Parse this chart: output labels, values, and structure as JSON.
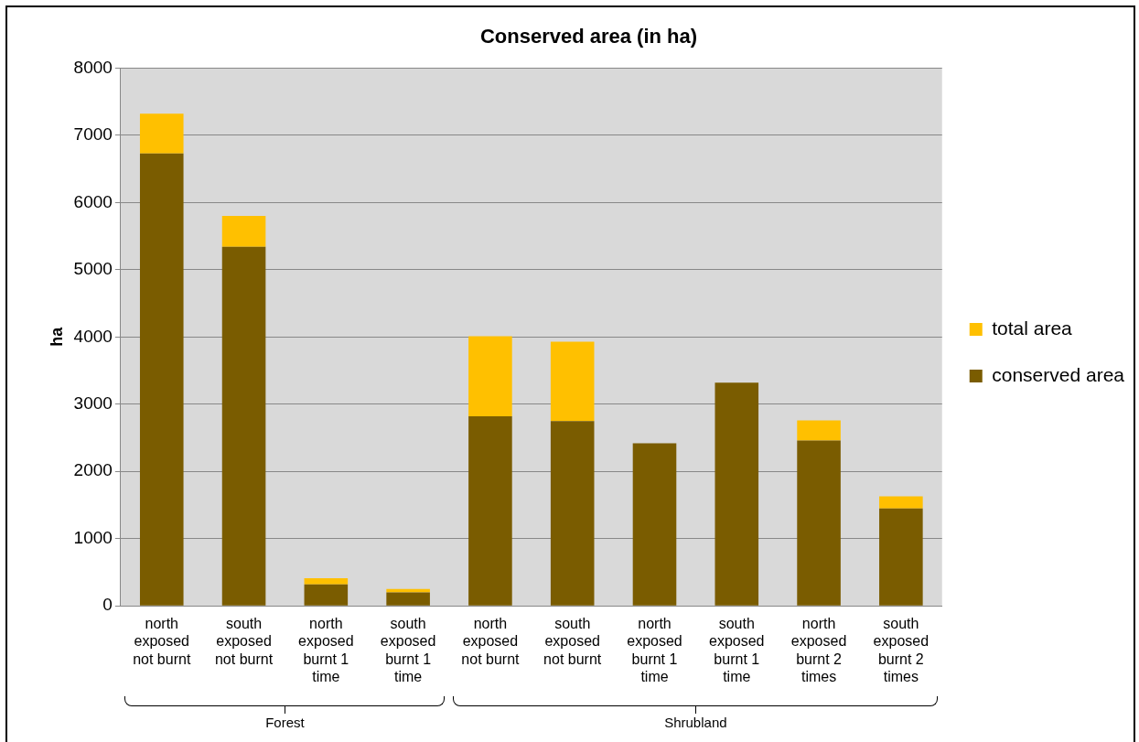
{
  "chart_data": {
    "type": "bar",
    "title": "Conserved area (in ha)",
    "ylabel": "ha",
    "categories": [
      "north exposed not burnt",
      "south exposed not burnt",
      "north exposed burnt 1 time",
      "south exposed burnt 1 time",
      "north exposed not burnt",
      "south exposed not burnt",
      "north exposed burnt 1 time",
      "south exposed burnt 1 time",
      "north exposed burnt 2 times",
      "south exposed burnt 2 times"
    ],
    "stacked": true,
    "series": [
      {
        "name": "conserved area",
        "color": "#7a5c00",
        "values": [
          6730,
          5340,
          320,
          200,
          2820,
          2750,
          2420,
          3320,
          2460,
          1450
        ]
      },
      {
        "name": "total area",
        "color": "#ffc000",
        "values": [
          590,
          460,
          90,
          50,
          1190,
          1180,
          0,
          0,
          300,
          180
        ]
      }
    ],
    "ylim": [
      0,
      8000
    ],
    "yticks": [
      0,
      1000,
      2000,
      3000,
      4000,
      5000,
      6000,
      7000,
      8000
    ],
    "grid": "y",
    "legend": "right",
    "annotations": [
      "Forest",
      "Shrubland"
    ]
  }
}
